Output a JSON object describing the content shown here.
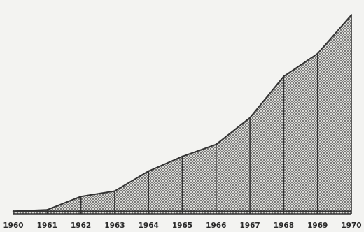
{
  "chart_data": {
    "type": "area",
    "title": "",
    "xlabel": "",
    "ylabel": "",
    "categories": [
      "1960",
      "1961",
      "1962",
      "1963",
      "1964",
      "1965",
      "1966",
      "1967",
      "1968",
      "1969",
      "1970"
    ],
    "values": [
      2,
      3,
      13,
      17,
      32,
      43,
      52,
      72,
      103,
      120,
      149
    ],
    "ylim": [
      0,
      155
    ],
    "baseline_value": 2,
    "grid": false,
    "legend": "none",
    "fill_pattern": "dotted-stipple",
    "colors": {
      "line": "#333333",
      "fill_dot": "#555555",
      "background": "#f3f3f1"
    }
  }
}
